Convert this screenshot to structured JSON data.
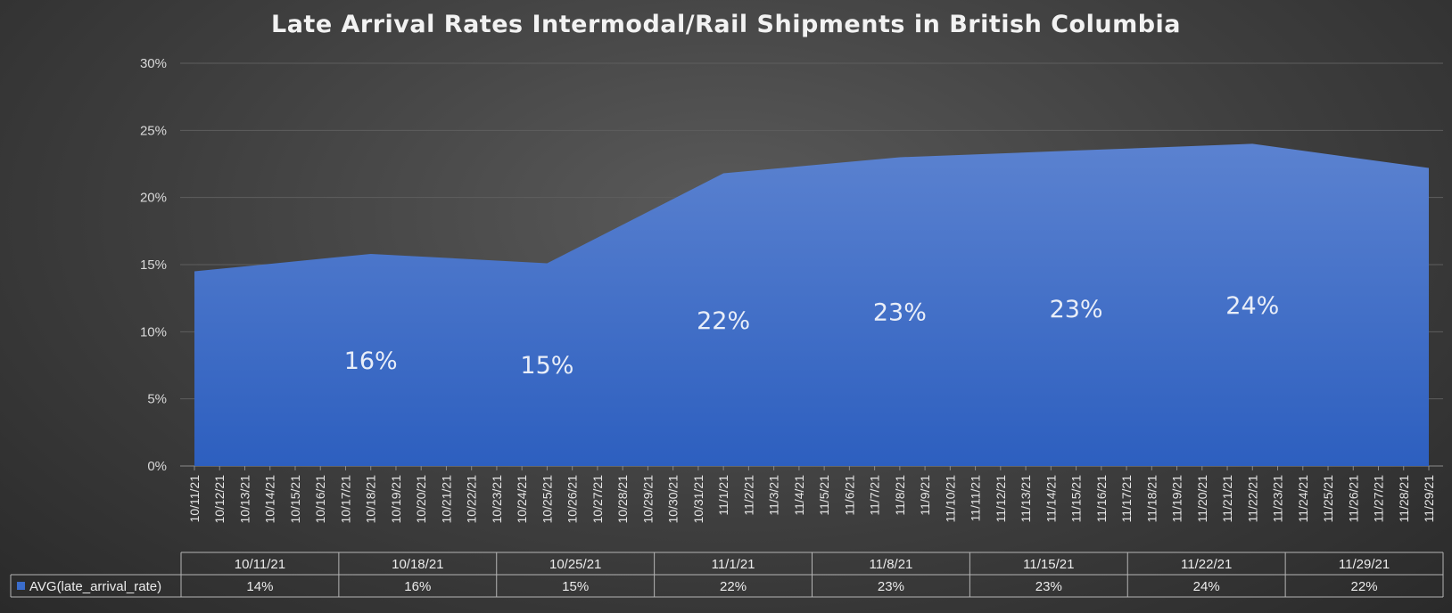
{
  "chart_data": {
    "type": "area",
    "title": "Late Arrival Rates Intermodal/Rail Shipments in British Columbia",
    "ylim": [
      0,
      0.3
    ],
    "yticks": [
      "0%",
      "5%",
      "10%",
      "15%",
      "20%",
      "25%",
      "30%"
    ],
    "grid": true,
    "x": [
      "10/11/21",
      "10/12/21",
      "10/13/21",
      "10/14/21",
      "10/15/21",
      "10/16/21",
      "10/17/21",
      "10/18/21",
      "10/19/21",
      "10/20/21",
      "10/21/21",
      "10/22/21",
      "10/23/21",
      "10/24/21",
      "10/25/21",
      "10/26/21",
      "10/27/21",
      "10/28/21",
      "10/29/21",
      "10/30/21",
      "10/31/21",
      "11/1/21",
      "11/2/21",
      "11/3/21",
      "11/4/21",
      "11/5/21",
      "11/6/21",
      "11/7/21",
      "11/8/21",
      "11/9/21",
      "11/10/21",
      "11/11/21",
      "11/12/21",
      "11/13/21",
      "11/14/21",
      "11/15/21",
      "11/16/21",
      "11/17/21",
      "11/18/21",
      "11/19/21",
      "11/20/21",
      "11/21/21",
      "11/22/21",
      "11/23/21",
      "11/24/21",
      "11/25/21",
      "11/26/21",
      "11/27/21",
      "11/28/21",
      "11/29/21"
    ],
    "series": [
      {
        "name": "AVG(late_arrival_rate)",
        "color": "#3a6ccb",
        "points": [
          {
            "x": "10/11/21",
            "y": 0.145
          },
          {
            "x": "10/18/21",
            "y": 0.158
          },
          {
            "x": "10/25/21",
            "y": 0.151
          },
          {
            "x": "11/1/21",
            "y": 0.218
          },
          {
            "x": "11/8/21",
            "y": 0.23
          },
          {
            "x": "11/15/21",
            "y": 0.235
          },
          {
            "x": "11/22/21",
            "y": 0.24
          },
          {
            "x": "11/29/21",
            "y": 0.222
          }
        ]
      }
    ],
    "data_labels": [
      {
        "x": "10/18/21",
        "text": "16%"
      },
      {
        "x": "10/25/21",
        "text": "15%"
      },
      {
        "x": "11/1/21",
        "text": "22%"
      },
      {
        "x": "11/8/21",
        "text": "23%"
      },
      {
        "x": "11/15/21",
        "text": "23%"
      },
      {
        "x": "11/22/21",
        "text": "24%"
      }
    ],
    "data_table": {
      "headers": [
        "10/11/21",
        "10/18/21",
        "10/25/21",
        "11/1/21",
        "11/8/21",
        "11/15/21",
        "11/22/21",
        "11/29/21"
      ],
      "row_label": "AVG(late_arrival_rate)",
      "values": [
        "14%",
        "16%",
        "15%",
        "22%",
        "23%",
        "23%",
        "24%",
        "22%"
      ]
    }
  }
}
